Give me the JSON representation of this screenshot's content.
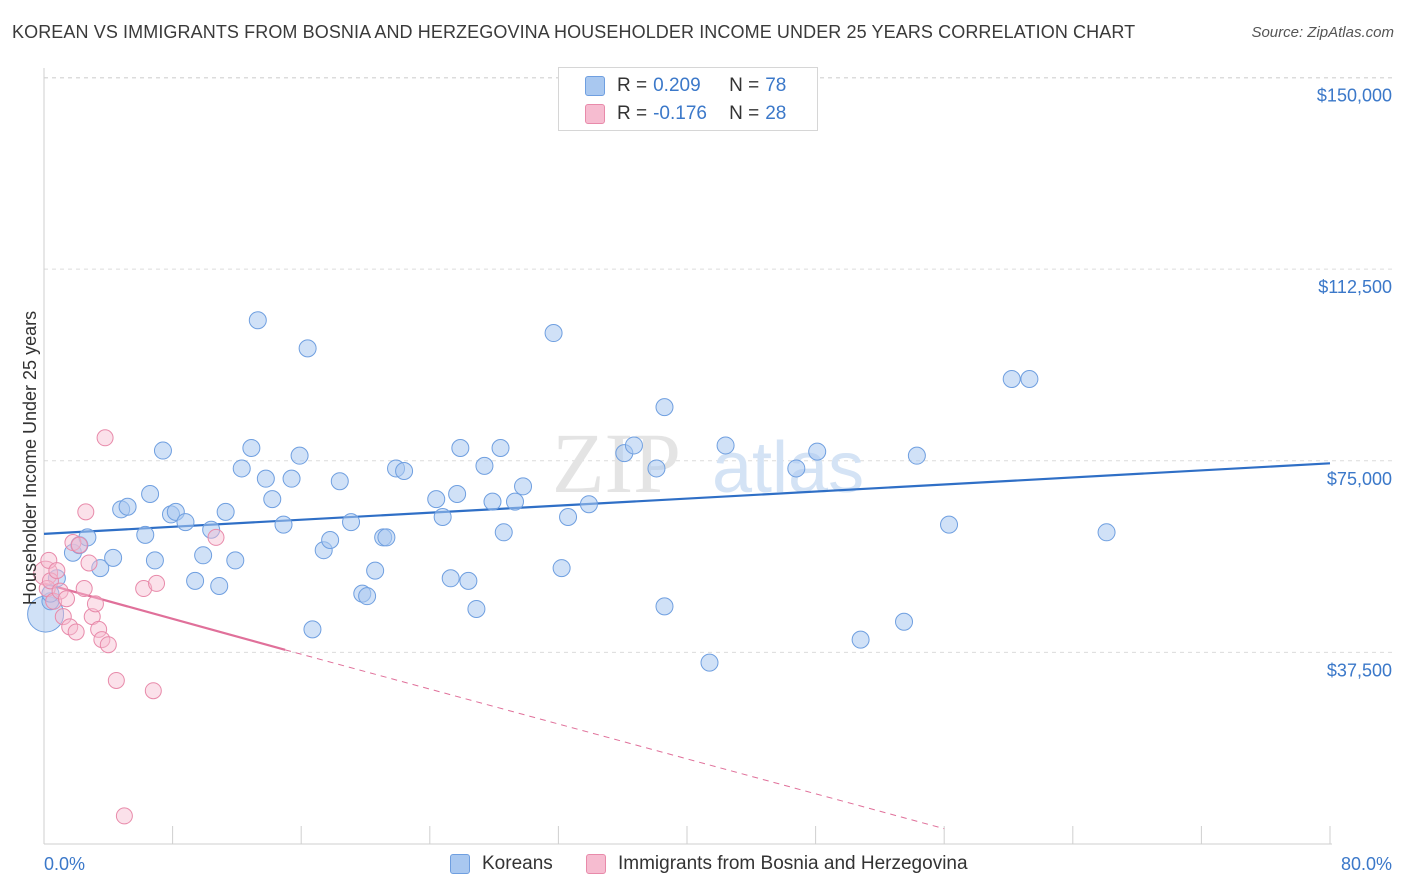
{
  "header": {
    "title": "KOREAN VS IMMIGRANTS FROM BOSNIA AND HERZEGOVINA HOUSEHOLDER INCOME UNDER 25 YEARS CORRELATION CHART",
    "source": "Source: ZipAtlas.com"
  },
  "watermark": {
    "zip": "ZIP",
    "atlas": "atlas"
  },
  "legend": {
    "series1": {
      "r_label": "R = ",
      "r_value": "0.209",
      "n_label": "N = ",
      "n_value": "78"
    },
    "series2": {
      "r_label": "R = ",
      "r_value": "-0.176",
      "n_label": "N = ",
      "n_value": "28"
    }
  },
  "colors": {
    "koreans_fill": "#a9c8f0",
    "koreans_stroke": "#6f9fe0",
    "koreans_line": "#2f6fc6",
    "bosnia_fill": "#f6bcd0",
    "bosnia_stroke": "#e88aaa",
    "bosnia_line": "#e0709a",
    "tick_text": "#3b78c9",
    "grid": "#dcdcdc"
  },
  "chart_data": {
    "type": "scatter",
    "title": "KOREAN VS IMMIGRANTS FROM BOSNIA AND HERZEGOVINA HOUSEHOLDER INCOME UNDER 25 YEARS CORRELATION CHART",
    "xlabel": "",
    "ylabel": "Householder Income Under 25 years",
    "xlim": [
      0,
      0.8
    ],
    "ylim": [
      0,
      155000
    ],
    "x_tick_labels": [
      "0.0%",
      "80.0%"
    ],
    "y_ticks": [
      37500,
      75000,
      112500,
      150000
    ],
    "y_tick_labels": [
      "$37,500",
      "$75,000",
      "$112,500",
      "$150,000"
    ],
    "legend_position": "top-center",
    "series": [
      {
        "name": "Koreans",
        "r": 0.209,
        "n": 78,
        "trend": {
          "x0": 0.0,
          "y0": 60700,
          "x1": 0.8,
          "y1": 74500,
          "style": "solid"
        },
        "points": [
          [
            0.001,
            45000
          ],
          [
            0.004,
            47500
          ],
          [
            0.008,
            52000
          ],
          [
            0.018,
            57000
          ],
          [
            0.022,
            58500
          ],
          [
            0.027,
            60000
          ],
          [
            0.035,
            54000
          ],
          [
            0.043,
            56000
          ],
          [
            0.048,
            65500
          ],
          [
            0.052,
            66000
          ],
          [
            0.063,
            60500
          ],
          [
            0.066,
            68500
          ],
          [
            0.069,
            55500
          ],
          [
            0.074,
            77000
          ],
          [
            0.079,
            64500
          ],
          [
            0.082,
            65000
          ],
          [
            0.088,
            63000
          ],
          [
            0.094,
            51500
          ],
          [
            0.099,
            56500
          ],
          [
            0.104,
            61500
          ],
          [
            0.109,
            50500
          ],
          [
            0.113,
            65000
          ],
          [
            0.119,
            55500
          ],
          [
            0.123,
            73500
          ],
          [
            0.129,
            77500
          ],
          [
            0.133,
            102500
          ],
          [
            0.138,
            71500
          ],
          [
            0.142,
            67500
          ],
          [
            0.149,
            62500
          ],
          [
            0.154,
            71500
          ],
          [
            0.159,
            76000
          ],
          [
            0.164,
            97000
          ],
          [
            0.167,
            42000
          ],
          [
            0.174,
            57500
          ],
          [
            0.178,
            59500
          ],
          [
            0.184,
            71000
          ],
          [
            0.191,
            63000
          ],
          [
            0.198,
            49000
          ],
          [
            0.201,
            48500
          ],
          [
            0.206,
            53500
          ],
          [
            0.211,
            60000
          ],
          [
            0.213,
            60000
          ],
          [
            0.219,
            73500
          ],
          [
            0.224,
            73000
          ],
          [
            0.244,
            67500
          ],
          [
            0.248,
            64000
          ],
          [
            0.253,
            52000
          ],
          [
            0.257,
            68500
          ],
          [
            0.259,
            77500
          ],
          [
            0.264,
            51500
          ],
          [
            0.269,
            46000
          ],
          [
            0.274,
            74000
          ],
          [
            0.279,
            67000
          ],
          [
            0.284,
            77500
          ],
          [
            0.286,
            61000
          ],
          [
            0.293,
            67000
          ],
          [
            0.298,
            70000
          ],
          [
            0.317,
            100000
          ],
          [
            0.322,
            54000
          ],
          [
            0.326,
            64000
          ],
          [
            0.339,
            66500
          ],
          [
            0.361,
            76500
          ],
          [
            0.367,
            78000
          ],
          [
            0.381,
            73500
          ],
          [
            0.386,
            46500
          ],
          [
            0.386,
            85500
          ],
          [
            0.414,
            35500
          ],
          [
            0.424,
            78000
          ],
          [
            0.468,
            73500
          ],
          [
            0.481,
            76800
          ],
          [
            0.508,
            40000
          ],
          [
            0.535,
            43500
          ],
          [
            0.543,
            76000
          ],
          [
            0.563,
            62500
          ],
          [
            0.602,
            91000
          ],
          [
            0.613,
            91000
          ],
          [
            0.661,
            61000
          ],
          [
            0.004,
            49000
          ]
        ]
      },
      {
        "name": "Immigrants from Bosnia and Herzegovina",
        "r": -0.176,
        "n": 28,
        "trend": {
          "x0": 0.0,
          "y0": 51000,
          "x1": 0.15,
          "y1": 38000,
          "x_dash_end": 0.56,
          "y_dash_end": 3000,
          "style": "solid-then-dashed"
        },
        "points": [
          [
            0.001,
            53000
          ],
          [
            0.002,
            50000
          ],
          [
            0.003,
            55500
          ],
          [
            0.004,
            51500
          ],
          [
            0.006,
            47500
          ],
          [
            0.008,
            53500
          ],
          [
            0.01,
            49500
          ],
          [
            0.012,
            44500
          ],
          [
            0.014,
            48000
          ],
          [
            0.016,
            42500
          ],
          [
            0.018,
            59000
          ],
          [
            0.02,
            41500
          ],
          [
            0.022,
            58500
          ],
          [
            0.025,
            50000
          ],
          [
            0.026,
            65000
          ],
          [
            0.028,
            55000
          ],
          [
            0.03,
            44500
          ],
          [
            0.032,
            47000
          ],
          [
            0.034,
            42000
          ],
          [
            0.036,
            40000
          ],
          [
            0.038,
            79500
          ],
          [
            0.04,
            39000
          ],
          [
            0.045,
            32000
          ],
          [
            0.05,
            5500
          ],
          [
            0.062,
            50000
          ],
          [
            0.068,
            30000
          ],
          [
            0.07,
            51000
          ],
          [
            0.107,
            60000
          ]
        ]
      }
    ]
  },
  "bottom_legend": {
    "koreans": "Koreans",
    "bosnia": "Immigrants from Bosnia and Herzegovina"
  }
}
